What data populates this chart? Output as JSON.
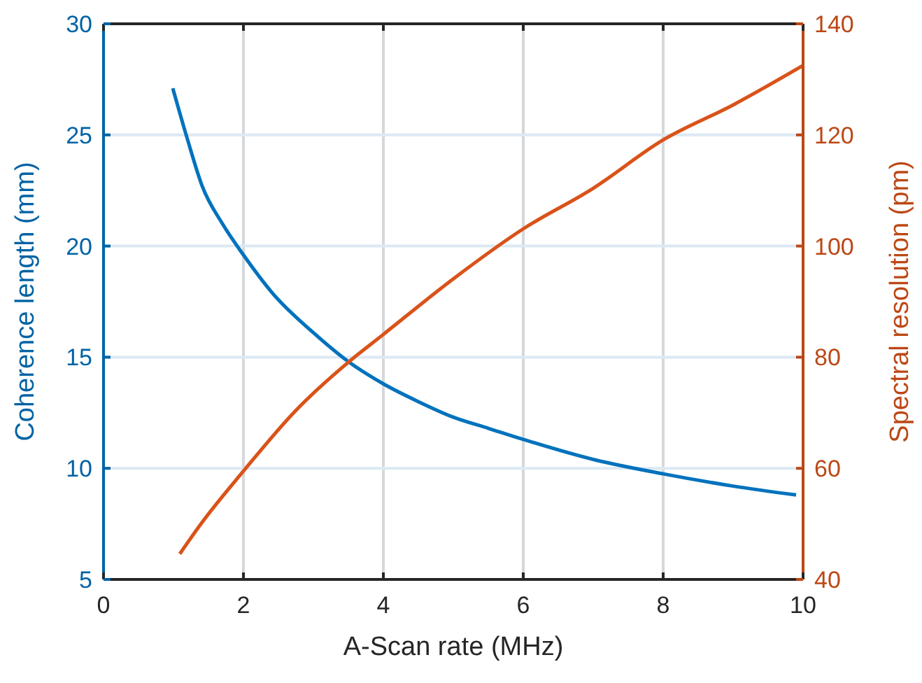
{
  "chart_data": {
    "type": "line",
    "xlabel": "A-Scan rate (MHz)",
    "ylabel": "Coherence length (mm)",
    "y2label": "Spectral resolution (pm)",
    "xlim": [
      0,
      10
    ],
    "xticks": [
      0,
      2,
      4,
      6,
      8,
      10
    ],
    "ylim": [
      5,
      30
    ],
    "yticks": [
      5,
      10,
      15,
      20,
      25,
      30
    ],
    "y2lim": [
      40,
      140
    ],
    "y2ticks": [
      40,
      60,
      80,
      100,
      120,
      140
    ],
    "grid": true,
    "series": [
      {
        "color": "#0072bd",
        "x": [
          0.99,
          1.2,
          1.41,
          1.7,
          2.0,
          2.41,
          3.0,
          3.5,
          4.0,
          4.5,
          5.0,
          5.5,
          6.0,
          7.0,
          8.0,
          9.0,
          9.9
        ],
        "values": [
          27.1,
          24.8,
          22.7,
          21.0,
          19.6,
          17.9,
          16.1,
          14.8,
          13.8,
          13.0,
          12.3,
          11.8,
          11.3,
          10.4,
          9.75,
          9.2,
          8.8
        ]
      },
      {
        "color": "#d95319",
        "axis": "y2",
        "x": [
          1.09,
          1.41,
          2.0,
          2.74,
          3.5,
          4.0,
          5.0,
          6.0,
          7.0,
          8.0,
          9.0,
          10.0
        ],
        "values": [
          44.6,
          50.3,
          59.5,
          70.3,
          79.1,
          84.1,
          94.1,
          103.1,
          110.4,
          119.1,
          125.4,
          132.5
        ]
      }
    ]
  }
}
